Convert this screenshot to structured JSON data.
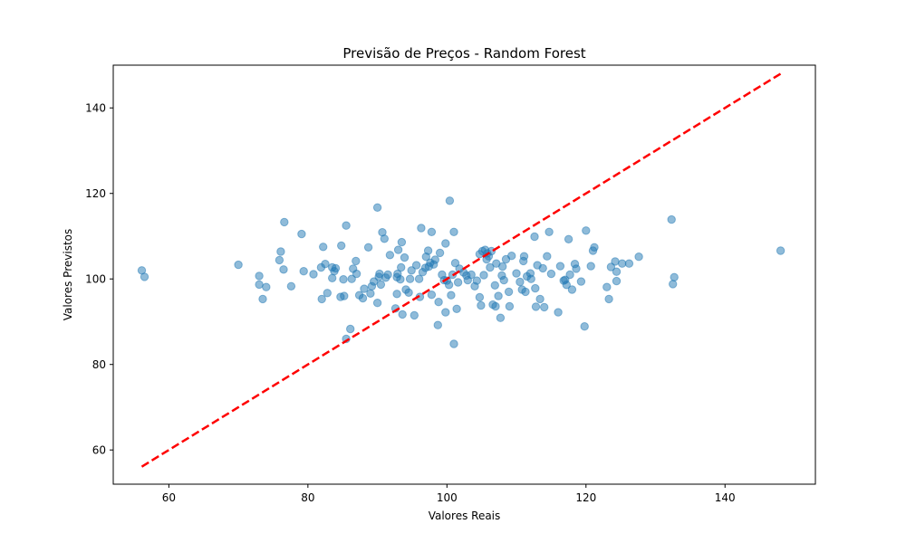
{
  "chart_data": {
    "type": "scatter",
    "title": "Previsão de Preços - Random Forest",
    "xlabel": "Valores Reais",
    "ylabel": "Valores Previstos",
    "xlim": [
      52,
      153
    ],
    "ylim": [
      52,
      150
    ],
    "xticks": [
      60,
      80,
      100,
      120,
      140
    ],
    "yticks": [
      60,
      80,
      100,
      120,
      140
    ],
    "xtick_labels": [
      "60",
      "80",
      "100",
      "120",
      "140"
    ],
    "ytick_labels": [
      "60",
      "80",
      "100",
      "120",
      "140"
    ],
    "grid": false,
    "colors": {
      "points": "#1f77b4",
      "reference_line": "#ff0000"
    },
    "reference_line": {
      "style": "dashed",
      "x": [
        56.1,
        148.0
      ],
      "y": [
        56.1,
        148.0
      ]
    },
    "points": [
      [
        56.1,
        102.0
      ],
      [
        56.5,
        100.5
      ],
      [
        70.0,
        103.3
      ],
      [
        73.0,
        100.7
      ],
      [
        73.0,
        98.7
      ],
      [
        73.5,
        95.3
      ],
      [
        74.0,
        98.1
      ],
      [
        75.9,
        104.4
      ],
      [
        76.1,
        106.4
      ],
      [
        76.5,
        102.2
      ],
      [
        76.6,
        113.3
      ],
      [
        77.6,
        98.3
      ],
      [
        79.1,
        110.5
      ],
      [
        79.4,
        101.8
      ],
      [
        80.8,
        101.1
      ],
      [
        81.9,
        102.7
      ],
      [
        82.0,
        95.3
      ],
      [
        82.2,
        107.5
      ],
      [
        82.5,
        103.5
      ],
      [
        82.8,
        96.7
      ],
      [
        83.5,
        100.2
      ],
      [
        83.5,
        102.7
      ],
      [
        83.8,
        101.8
      ],
      [
        84.0,
        102.5
      ],
      [
        84.7,
        95.8
      ],
      [
        84.8,
        107.8
      ],
      [
        85.1,
        99.9
      ],
      [
        85.2,
        96.0
      ],
      [
        85.5,
        112.5
      ],
      [
        85.5,
        86.0
      ],
      [
        86.1,
        88.3
      ],
      [
        86.3,
        100.0
      ],
      [
        86.5,
        102.4
      ],
      [
        86.9,
        104.2
      ],
      [
        87.0,
        101.2
      ],
      [
        87.4,
        96.2
      ],
      [
        87.9,
        95.5
      ],
      [
        88.1,
        97.7
      ],
      [
        88.7,
        107.4
      ],
      [
        89.0,
        96.6
      ],
      [
        89.2,
        98.3
      ],
      [
        89.5,
        99.4
      ],
      [
        90.0,
        116.7
      ],
      [
        90.0,
        94.4
      ],
      [
        90.2,
        100.5
      ],
      [
        90.3,
        101.2
      ],
      [
        90.5,
        98.7
      ],
      [
        90.7,
        110.9
      ],
      [
        91.0,
        109.4
      ],
      [
        91.2,
        100.3
      ],
      [
        91.5,
        101.0
      ],
      [
        91.8,
        105.6
      ],
      [
        92.6,
        93.1
      ],
      [
        92.8,
        100.4
      ],
      [
        92.8,
        96.5
      ],
      [
        92.9,
        101.2
      ],
      [
        93.0,
        106.8
      ],
      [
        93.3,
        99.9
      ],
      [
        93.4,
        102.7
      ],
      [
        93.5,
        108.6
      ],
      [
        93.6,
        91.7
      ],
      [
        93.9,
        105.0
      ],
      [
        94.1,
        97.5
      ],
      [
        94.5,
        96.8
      ],
      [
        94.7,
        100.0
      ],
      [
        94.9,
        102.0
      ],
      [
        95.3,
        91.5
      ],
      [
        95.6,
        103.2
      ],
      [
        96.0,
        100.0
      ],
      [
        96.1,
        95.8
      ],
      [
        96.3,
        111.9
      ],
      [
        96.5,
        101.6
      ],
      [
        96.9,
        102.6
      ],
      [
        97.0,
        105.2
      ],
      [
        97.3,
        106.6
      ],
      [
        97.4,
        102.9
      ],
      [
        97.6,
        103.8
      ],
      [
        97.8,
        111.0
      ],
      [
        97.8,
        96.3
      ],
      [
        98.1,
        103.4
      ],
      [
        98.3,
        104.5
      ],
      [
        98.7,
        89.2
      ],
      [
        98.8,
        94.6
      ],
      [
        99.0,
        106.1
      ],
      [
        99.3,
        101.0
      ],
      [
        99.6,
        99.7
      ],
      [
        99.8,
        92.2
      ],
      [
        99.8,
        108.3
      ],
      [
        100.0,
        99.6
      ],
      [
        100.3,
        98.6
      ],
      [
        100.4,
        118.3
      ],
      [
        100.6,
        96.2
      ],
      [
        100.8,
        101.0
      ],
      [
        101.0,
        111.0
      ],
      [
        101.0,
        84.8
      ],
      [
        101.2,
        103.7
      ],
      [
        101.4,
        93.0
      ],
      [
        101.6,
        99.2
      ],
      [
        101.8,
        102.4
      ],
      [
        102.4,
        101.5
      ],
      [
        102.8,
        100.8
      ],
      [
        103.0,
        99.7
      ],
      [
        103.5,
        101.0
      ],
      [
        104.0,
        98.3
      ],
      [
        104.3,
        99.6
      ],
      [
        104.7,
        95.7
      ],
      [
        104.7,
        105.8
      ],
      [
        104.9,
        93.8
      ],
      [
        105.1,
        106.5
      ],
      [
        105.3,
        100.9
      ],
      [
        105.5,
        106.8
      ],
      [
        105.7,
        104.6
      ],
      [
        105.8,
        106.0
      ],
      [
        106.0,
        105.3
      ],
      [
        106.2,
        102.7
      ],
      [
        106.4,
        106.5
      ],
      [
        106.6,
        94.0
      ],
      [
        106.9,
        98.5
      ],
      [
        107.0,
        93.6
      ],
      [
        107.1,
        103.6
      ],
      [
        107.4,
        96.0
      ],
      [
        107.7,
        90.9
      ],
      [
        107.9,
        100.8
      ],
      [
        108.0,
        102.9
      ],
      [
        108.2,
        99.7
      ],
      [
        108.5,
        104.6
      ],
      [
        108.9,
        97.0
      ],
      [
        109.0,
        93.6
      ],
      [
        109.3,
        105.4
      ],
      [
        110.0,
        101.3
      ],
      [
        110.5,
        99.3
      ],
      [
        110.8,
        97.5
      ],
      [
        111.0,
        104.2
      ],
      [
        111.1,
        105.3
      ],
      [
        111.3,
        97.0
      ],
      [
        111.5,
        100.6
      ],
      [
        112.0,
        101.3
      ],
      [
        112.1,
        100.0
      ],
      [
        112.6,
        109.9
      ],
      [
        112.7,
        97.8
      ],
      [
        112.8,
        93.5
      ],
      [
        113.0,
        103.2
      ],
      [
        113.4,
        95.3
      ],
      [
        113.8,
        102.5
      ],
      [
        114.0,
        93.4
      ],
      [
        114.4,
        105.3
      ],
      [
        114.7,
        111.0
      ],
      [
        115.0,
        101.2
      ],
      [
        116.0,
        92.2
      ],
      [
        116.3,
        103.0
      ],
      [
        116.8,
        99.6
      ],
      [
        117.0,
        99.8
      ],
      [
        117.2,
        98.6
      ],
      [
        117.5,
        109.3
      ],
      [
        117.7,
        101.0
      ],
      [
        118.0,
        97.5
      ],
      [
        118.4,
        103.5
      ],
      [
        118.6,
        102.4
      ],
      [
        119.3,
        99.4
      ],
      [
        119.8,
        88.9
      ],
      [
        120.0,
        111.3
      ],
      [
        120.7,
        103.0
      ],
      [
        121.0,
        106.6
      ],
      [
        121.2,
        107.4
      ],
      [
        123.0,
        98.1
      ],
      [
        123.3,
        95.3
      ],
      [
        123.6,
        102.8
      ],
      [
        124.2,
        104.1
      ],
      [
        124.4,
        99.5
      ],
      [
        124.4,
        101.7
      ],
      [
        125.2,
        103.6
      ],
      [
        126.2,
        103.6
      ],
      [
        127.6,
        105.2
      ],
      [
        132.3,
        113.9
      ],
      [
        132.5,
        98.8
      ],
      [
        132.7,
        100.4
      ],
      [
        148.0,
        106.6
      ]
    ]
  }
}
